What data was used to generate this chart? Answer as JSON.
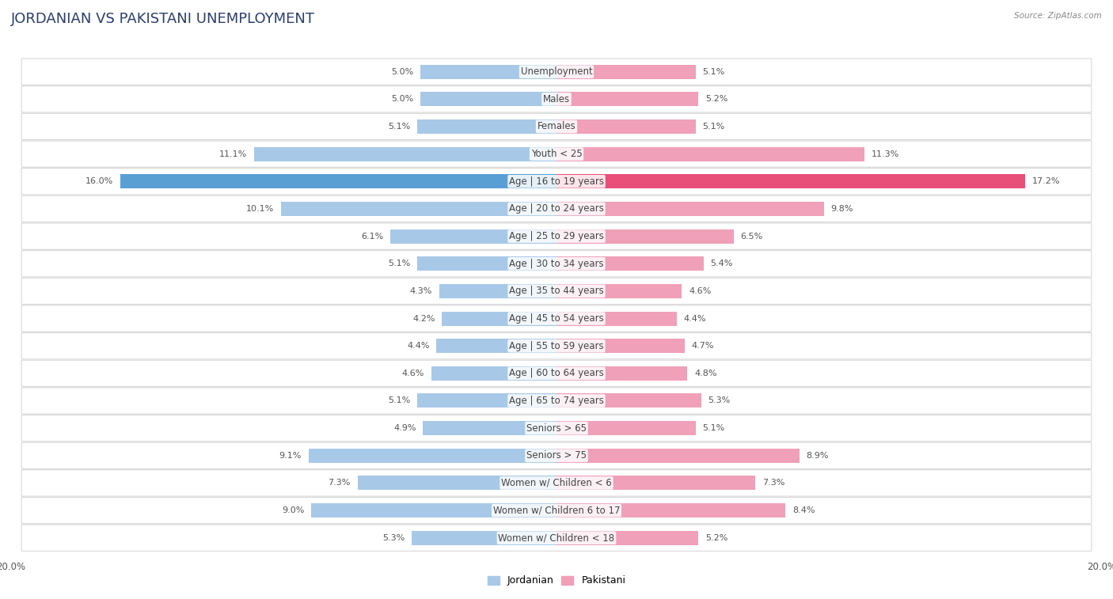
{
  "title": "JORDANIAN VS PAKISTANI UNEMPLOYMENT",
  "source": "Source: ZipAtlas.com",
  "categories": [
    "Unemployment",
    "Males",
    "Females",
    "Youth < 25",
    "Age | 16 to 19 years",
    "Age | 20 to 24 years",
    "Age | 25 to 29 years",
    "Age | 30 to 34 years",
    "Age | 35 to 44 years",
    "Age | 45 to 54 years",
    "Age | 55 to 59 years",
    "Age | 60 to 64 years",
    "Age | 65 to 74 years",
    "Seniors > 65",
    "Seniors > 75",
    "Women w/ Children < 6",
    "Women w/ Children 6 to 17",
    "Women w/ Children < 18"
  ],
  "jordanian": [
    5.0,
    5.0,
    5.1,
    11.1,
    16.0,
    10.1,
    6.1,
    5.1,
    4.3,
    4.2,
    4.4,
    4.6,
    5.1,
    4.9,
    9.1,
    7.3,
    9.0,
    5.3
  ],
  "pakistani": [
    5.1,
    5.2,
    5.1,
    11.3,
    17.2,
    9.8,
    6.5,
    5.4,
    4.6,
    4.4,
    4.7,
    4.8,
    5.3,
    5.1,
    8.9,
    7.3,
    8.4,
    5.2
  ],
  "jordanian_color": "#a8c8e8",
  "pakistani_color": "#f0a0b8",
  "highlight_jordanian_color": "#5a9fd4",
  "highlight_pakistani_color": "#e8507a",
  "highlight_row": 4,
  "bar_height": 0.52,
  "xlim": 20.0,
  "bg_color": "#ffffff",
  "row_card_color": "#ffffff",
  "row_border_color": "#d8d8d8",
  "row_shadow_color": "#e8e8e8",
  "title_fontsize": 13,
  "label_fontsize": 8.5,
  "value_fontsize": 8.0,
  "tick_fontsize": 8.5
}
